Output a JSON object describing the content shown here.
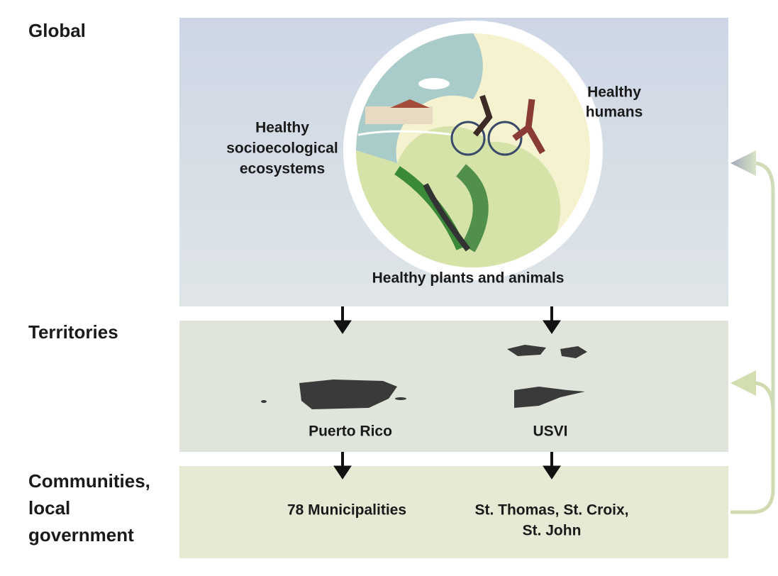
{
  "levels": [
    {
      "label": [
        "Global"
      ]
    },
    {
      "label": [
        "Territories"
      ]
    },
    {
      "label": [
        "Communities,",
        "local",
        "government"
      ]
    }
  ],
  "global": {
    "humans": [
      "Healthy",
      "humans"
    ],
    "ecosystems": [
      "Healthy",
      "socioecological",
      "ecosystems"
    ],
    "plants": [
      "Healthy plants and animals"
    ]
  },
  "territories": [
    {
      "name": [
        "Puerto Rico"
      ]
    },
    {
      "name": [
        "USVI"
      ]
    }
  ],
  "communities": [
    {
      "name": [
        "78 Municipalities"
      ]
    },
    {
      "name": [
        "St. Thomas, St. Croix,",
        "St. John"
      ]
    }
  ]
}
